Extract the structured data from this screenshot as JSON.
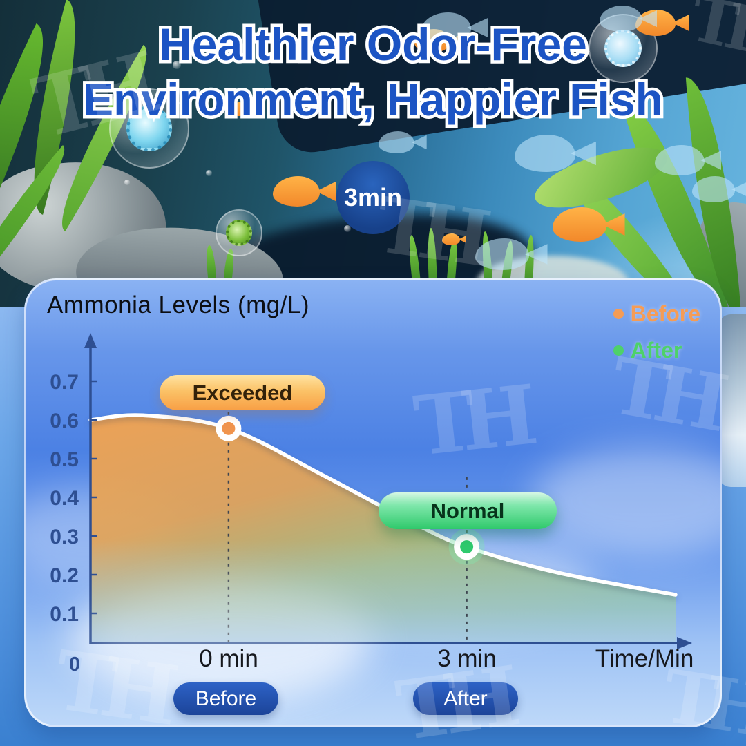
{
  "header": {
    "title_line1": "Healthier Odor-Free",
    "title_line2": "Environment, Happier Fish",
    "time_badge": "3min"
  },
  "watermark_text": "TH",
  "chart_data": {
    "type": "area",
    "title": "Ammonia Levels (mg/L)",
    "xlabel": "Time/Min",
    "ylabel": "Ammonia Levels (mg/L)",
    "ylim": [
      0,
      0.75
    ],
    "y_ticks": [
      0.7,
      0.6,
      0.5,
      0.4,
      0.3,
      0.2,
      0.1
    ],
    "origin_label": "0",
    "x_tick_labels": [
      "0 min",
      "3 min"
    ],
    "grid": false,
    "legend_position": "top-right",
    "legend": [
      {
        "name": "Before",
        "color": "#F59C55"
      },
      {
        "name": "After",
        "color": "#4ED16A"
      }
    ],
    "annotations": [
      {
        "text": "Exceeded",
        "applies_to": "Before",
        "color": "#F9A64B"
      },
      {
        "text": "Normal",
        "applies_to": "After",
        "color": "#2FC96B"
      }
    ],
    "key_points": [
      {
        "x_label": "0 min",
        "value_mg_l": 0.58,
        "state": "Before"
      },
      {
        "x_label": "3 min",
        "value_mg_l": 0.27,
        "state": "After"
      }
    ],
    "series": [
      {
        "name": "Ammonia level (mg/L)",
        "points": [
          {
            "t": 0.0,
            "v": 0.6
          },
          {
            "t": 0.09,
            "v": 0.612
          },
          {
            "t": 0.236,
            "v": 0.578,
            "marker": {
              "name": "before-point",
              "color": "#F0944D",
              "guide_top": 0.62
            }
          },
          {
            "t": 0.4,
            "v": 0.455
          },
          {
            "t": 0.55,
            "v": 0.335
          },
          {
            "t": 0.643,
            "v": 0.272,
            "marker": {
              "name": "after-point",
              "color": "#2FCA6E",
              "guide_top": 0.452,
              "halo": true
            }
          },
          {
            "t": 0.8,
            "v": 0.205
          },
          {
            "t": 1.0,
            "v": 0.148
          }
        ]
      }
    ]
  },
  "footer_buttons": {
    "before": "Before",
    "after": "After"
  }
}
